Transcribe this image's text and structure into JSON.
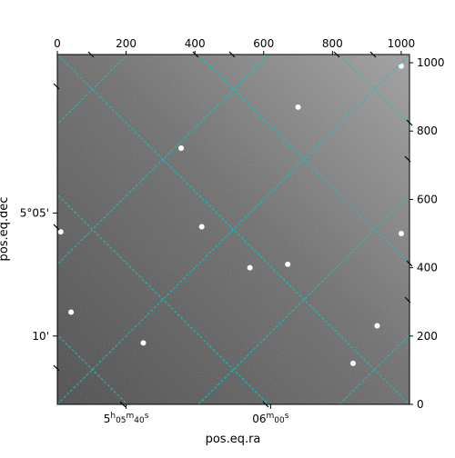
{
  "chart_data": {
    "type": "image",
    "title": "",
    "xlabel": "pos.eq.ra",
    "ylabel": "pos.eq.dec",
    "pixel_axes": {
      "x_range": [
        0,
        1024
      ],
      "y_range": [
        0,
        1024
      ],
      "x_ticks": [
        {
          "value": 0,
          "label": "0"
        },
        {
          "value": 200,
          "label": "200"
        },
        {
          "value": 400,
          "label": "400"
        },
        {
          "value": 600,
          "label": "600"
        },
        {
          "value": 800,
          "label": "800"
        },
        {
          "value": 1000,
          "label": "1000"
        }
      ],
      "y_ticks": [
        {
          "value": 0,
          "label": "0"
        },
        {
          "value": 200,
          "label": "200"
        },
        {
          "value": 400,
          "label": "400"
        },
        {
          "value": 600,
          "label": "600"
        },
        {
          "value": 800,
          "label": "800"
        },
        {
          "value": 1000,
          "label": "1000"
        }
      ]
    },
    "world_axes": {
      "ra_ticks": [
        {
          "value": 200,
          "h": "5",
          "m": "05",
          "s": "40"
        },
        {
          "value": 620,
          "h": "",
          "m": "06",
          "s": "00"
        }
      ],
      "dec_ticks": [
        {
          "value": 560,
          "label": "5°05'"
        },
        {
          "value": 200,
          "label": "10'"
        }
      ]
    },
    "grid": true,
    "grid_color": "#00cccc",
    "colormap": "gray",
    "bright_stars": [
      {
        "x": 700,
        "y": 870
      },
      {
        "x": 40,
        "y": 270
      },
      {
        "x": 560,
        "y": 400
      },
      {
        "x": 420,
        "y": 520
      },
      {
        "x": 250,
        "y": 180
      },
      {
        "x": 860,
        "y": 120
      },
      {
        "x": 1000,
        "y": 990
      },
      {
        "x": 1000,
        "y": 500
      },
      {
        "x": 10,
        "y": 505
      },
      {
        "x": 360,
        "y": 750
      },
      {
        "x": 670,
        "y": 410
      },
      {
        "x": 930,
        "y": 230
      }
    ]
  }
}
